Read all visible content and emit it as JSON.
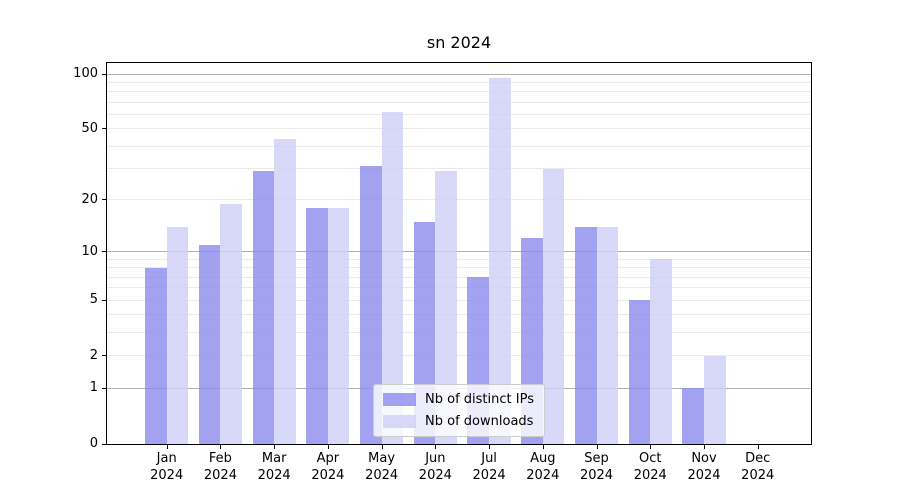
{
  "figure": {
    "background": "#ffffff"
  },
  "chart_data": {
    "type": "bar",
    "title": "sn 2024",
    "categories": [
      "Jan",
      "Feb",
      "Mar",
      "Apr",
      "May",
      "Jun",
      "Jul",
      "Aug",
      "Sep",
      "Oct",
      "Nov",
      "Dec"
    ],
    "category_sublabel": "2024",
    "series": [
      {
        "name": "Nb of distinct IPs",
        "color": "#8b8bec",
        "alpha": 0.8,
        "values": [
          8,
          11,
          29,
          18,
          31,
          15,
          7,
          12,
          14,
          5,
          1,
          0
        ]
      },
      {
        "name": "Nb of downloads",
        "color": "#cecef6",
        "alpha": 0.8,
        "values": [
          14,
          19,
          44,
          18,
          62,
          29,
          95,
          30,
          14,
          9,
          2,
          0
        ]
      }
    ],
    "yscale": "log1p",
    "ylim": [
      0,
      115
    ],
    "y_ticks": [
      0,
      1,
      2,
      5,
      10,
      20,
      50,
      100
    ],
    "y_major_gridlines": [
      1,
      10,
      100
    ],
    "y_minor_gridlines": [
      2,
      3,
      4,
      5,
      6,
      7,
      8,
      9,
      20,
      30,
      40,
      50,
      60,
      70,
      80,
      90
    ],
    "grid": true,
    "legend": {
      "position": "lower center"
    }
  },
  "colors": {
    "major_grid": "#b0b0b0",
    "minor_grid": "#eaeaea",
    "axis": "#000000",
    "text": "#000000",
    "legend_border": "#cccccc"
  }
}
